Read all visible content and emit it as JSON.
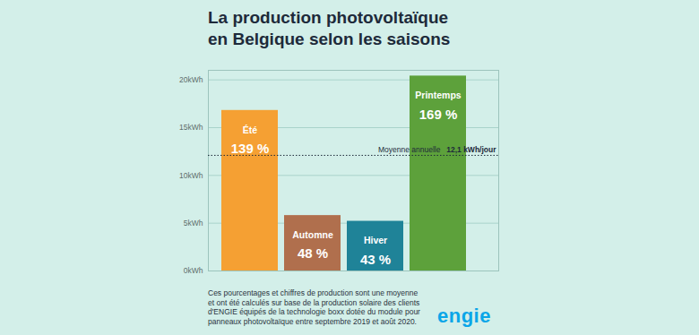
{
  "chart_data": {
    "type": "bar",
    "title": "La production photovoltaïque en Belgique selon les saisons",
    "categories": [
      "Été",
      "Automne",
      "Hiver",
      "Printemps"
    ],
    "values": [
      16.8,
      5.8,
      5.2,
      20.4
    ],
    "colors": [
      "#f5a033",
      "#b06f4d",
      "#1f8398",
      "#5da13b"
    ],
    "percent_labels": [
      "139 %",
      "48 %",
      "43 %",
      "169 %"
    ],
    "ylim": [
      0,
      21
    ],
    "yticks": [
      {
        "value": 0,
        "label": "0kWh"
      },
      {
        "value": 5,
        "label": "5kWh"
      },
      {
        "value": 10,
        "label": "10kWh"
      },
      {
        "value": 15,
        "label": "15kWh"
      },
      {
        "value": 20,
        "label": "20kWh"
      }
    ],
    "grid": true,
    "tick_labels": "y",
    "reference_line": {
      "value": 12.1,
      "label": "Moyenne annuelle",
      "value_label": "12,1 kWh/jour"
    },
    "caption": "Ces pourcentages et chiffres de production sont une moyenne et ont été calculés sur base de la production solaire des clients d'ENGIE équipés de la technologie boxx dotée du module pour panneaux photovoltaïque entre septembre 2019 et août 2020.",
    "logo": "engie"
  }
}
